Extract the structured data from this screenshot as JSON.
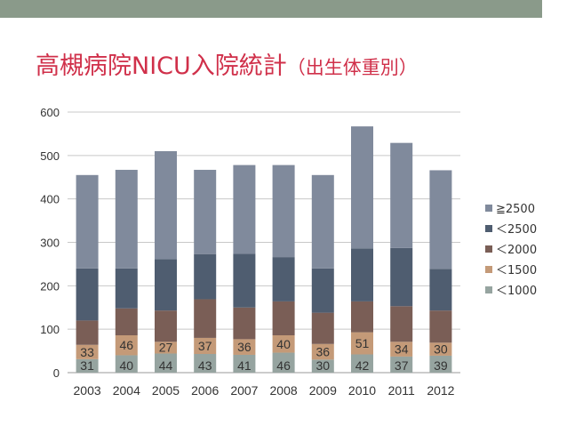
{
  "slide": {
    "title_main": "高槻病院NICU入院統計",
    "title_sub": "（出生体重別）"
  },
  "colors": {
    "topbar": "#8a9a8a",
    "title": "#d0304a",
    "series": [
      "#96a4a0",
      "#c49a78",
      "#7a5e56",
      "#4f5d70",
      "#808a9c"
    ]
  },
  "chart_data": {
    "type": "bar",
    "stacked": true,
    "title": "",
    "xlabel": "",
    "ylabel": "",
    "ylim": [
      0,
      600
    ],
    "yticks": [
      0,
      100,
      200,
      300,
      400,
      500,
      600
    ],
    "grid": true,
    "legend_position": "right",
    "categories": [
      "2003",
      "2004",
      "2005",
      "2006",
      "2007",
      "2008",
      "2009",
      "2010",
      "2011",
      "2012"
    ],
    "series": [
      {
        "name": "＜1000",
        "values": [
          31,
          40,
          44,
          43,
          41,
          46,
          30,
          42,
          37,
          39
        ],
        "labels": [
          "31",
          "40",
          "44",
          "43",
          "41",
          "46",
          "30",
          "42",
          "37",
          "39"
        ]
      },
      {
        "name": "＜1500",
        "values": [
          33,
          46,
          27,
          37,
          36,
          40,
          36,
          51,
          34,
          30
        ],
        "labels": [
          "33",
          "46",
          "27",
          "37",
          "36",
          "40",
          "36",
          "51",
          "34",
          "30"
        ]
      },
      {
        "name": "＜2000",
        "values": [
          56,
          62,
          72,
          89,
          73,
          78,
          72,
          71,
          82,
          74
        ]
      },
      {
        "name": "＜2500",
        "values": [
          120,
          92,
          118,
          104,
          124,
          102,
          102,
          122,
          134,
          96
        ]
      },
      {
        "name": "≧2500",
        "values": [
          215,
          227,
          249,
          194,
          204,
          212,
          215,
          281,
          242,
          227
        ]
      }
    ],
    "legend_order": [
      "≧2500",
      "＜2500",
      "＜2000",
      "＜1500",
      "＜1000"
    ]
  }
}
